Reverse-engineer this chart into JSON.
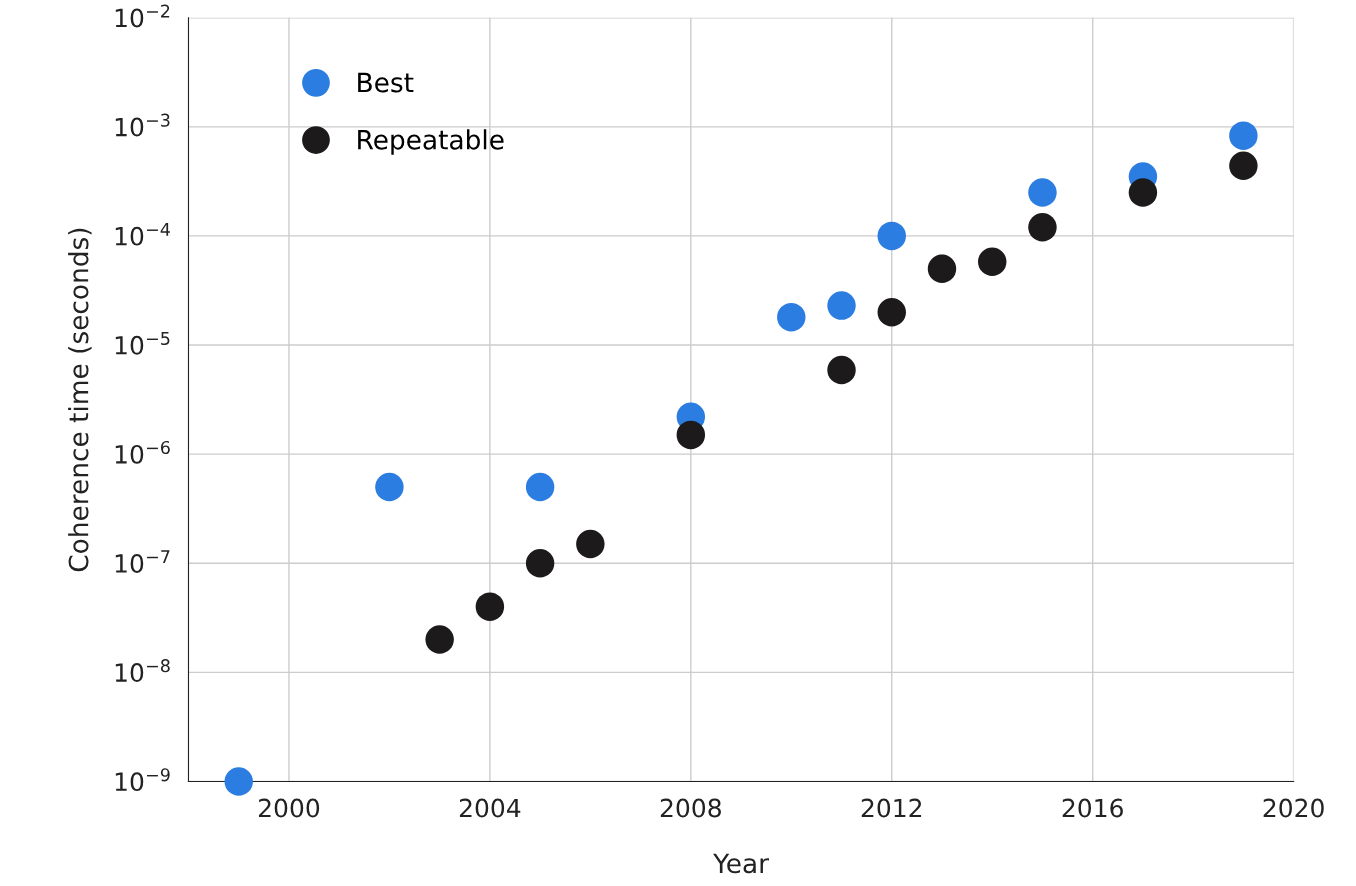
{
  "chart_data": {
    "type": "scatter",
    "xlabel": "Year",
    "ylabel": "Coherence time (seconds)",
    "series": [
      {
        "name": "Best",
        "color": "#2b7de1",
        "x": [
          1999,
          2002,
          2005,
          2008,
          2010,
          2011,
          2012,
          2015,
          2017,
          2019
        ],
        "values": [
          1e-09,
          5e-07,
          5e-07,
          2.2e-06,
          1.8e-05,
          2.3e-05,
          0.0001,
          0.00025,
          0.00035,
          0.00083
        ]
      },
      {
        "name": "Repeatable",
        "color": "#1c1a1a",
        "x": [
          2003,
          2004,
          2005,
          2006,
          2008,
          2011,
          2012,
          2013,
          2014,
          2015,
          2017,
          2019
        ],
        "values": [
          2e-08,
          4e-08,
          1e-07,
          1.5e-07,
          1.5e-06,
          5.9e-06,
          2e-05,
          5e-05,
          5.8e-05,
          0.00012,
          0.00025,
          0.00044
        ]
      }
    ],
    "log": "y",
    "xlim": [
      1998,
      2020
    ],
    "xticks": [
      2000,
      2004,
      2008,
      2012,
      2016,
      2020
    ],
    "ylim": [
      1e-09,
      0.01
    ],
    "yticks": [
      {
        "value": 1e-09,
        "label": "10$^{−9}$"
      },
      {
        "value": 1e-08,
        "label": "10$^{−8}$"
      },
      {
        "value": 1e-07,
        "label": "10$^{−7}$"
      },
      {
        "value": 1e-06,
        "label": "10$^{−6}$"
      },
      {
        "value": 1e-05,
        "label": "10$^{−5}$"
      },
      {
        "value": 0.0001,
        "label": "10$^{−4}$"
      },
      {
        "value": 0.001,
        "label": "10$^{−3}$"
      },
      {
        "value": 0.01,
        "label": "10$^{−2}$"
      }
    ],
    "grid": true,
    "legend": "top left",
    "marker": "circle"
  }
}
